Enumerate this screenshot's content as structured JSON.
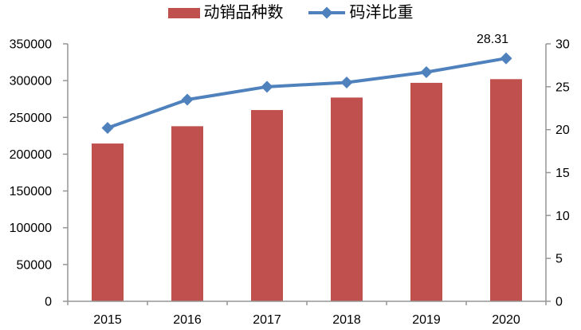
{
  "chart_data": {
    "type": "combo",
    "title": "",
    "categories": [
      "2015",
      "2016",
      "2017",
      "2018",
      "2019",
      "2020"
    ],
    "series": [
      {
        "name": "动销品种数",
        "type": "bar",
        "axis": "left",
        "color": "#C0504D",
        "values": [
          214500,
          238000,
          260000,
          277000,
          297000,
          302000
        ]
      },
      {
        "name": "码洋比重",
        "type": "line",
        "axis": "right",
        "color": "#4F81BD",
        "marker": "diamond",
        "values": [
          20.2,
          23.5,
          25.0,
          25.5,
          26.7,
          28.31
        ]
      }
    ],
    "left_axis": {
      "min": 0,
      "max": 350000,
      "step": 50000,
      "tick_labels": [
        "0",
        "50000",
        "100000",
        "150000",
        "200000",
        "250000",
        "300000",
        "350000"
      ]
    },
    "right_axis": {
      "min": 0,
      "max": 30,
      "step": 5,
      "tick_labels": [
        "0",
        "5",
        "10",
        "15",
        "20",
        "25",
        "30"
      ]
    },
    "annotation": {
      "text": "28.31",
      "series": "码洋比重",
      "category": "2020"
    },
    "legend": [
      {
        "label": "动销品种数",
        "swatch": "bar",
        "color": "#C0504D"
      },
      {
        "label": "码洋比重",
        "swatch": "line-diamond",
        "color": "#4F81BD"
      }
    ],
    "gridlines": false,
    "background": "#FFFFFF",
    "axis_line_color": "#969696",
    "text_color": "#000000"
  }
}
